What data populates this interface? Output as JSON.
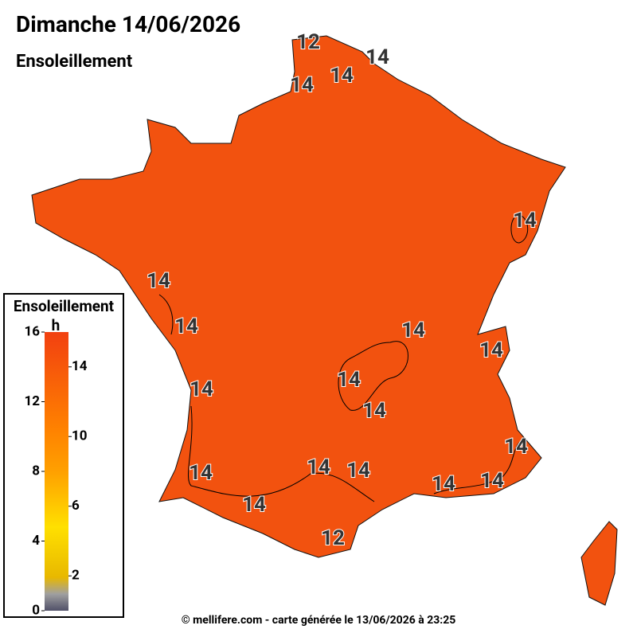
{
  "header": {
    "title": "Dimanche 14/06/2026",
    "subtitle": "Ensoleillement"
  },
  "legend": {
    "title": "Ensoleillement",
    "unit": "h",
    "range": [
      0,
      16
    ],
    "ticks_left": [
      0,
      4,
      8,
      12,
      16
    ],
    "ticks_right": [
      2,
      6,
      10,
      14
    ]
  },
  "contour_labels": [
    12,
    14,
    14,
    14,
    14,
    14,
    14,
    14,
    14,
    14,
    14,
    14,
    14,
    14,
    14,
    14,
    14,
    14,
    14,
    12
  ],
  "footer": "© mellifere.com - carte générée le 13/06/2026 à 23:25"
}
